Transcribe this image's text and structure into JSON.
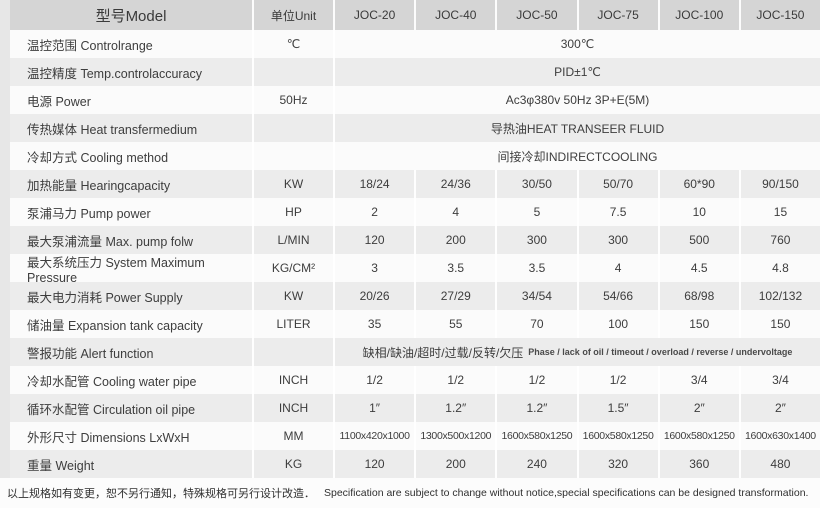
{
  "colors": {
    "header_bg": "#d5d5d5",
    "row_light": "#fbfbfb",
    "row_dark": "#ececec",
    "text": "#3d3d3d"
  },
  "table": {
    "header": {
      "model": "型号Model",
      "unit": "单位Unit",
      "models": [
        "JOC-20",
        "JOC-40",
        "JOC-50",
        "JOC-75",
        "JOC-100",
        "JOC-150"
      ]
    },
    "rows": [
      {
        "label": "温控范围 Controlrange",
        "unit": "℃",
        "span": "300℃"
      },
      {
        "label": "温控精度 Temp.controlaccuracy",
        "unit": "",
        "span": "PID±1℃"
      },
      {
        "label": "电源 Power",
        "unit": "50Hz",
        "span": "Ac3φ380v 50Hz 3P+E(5M)"
      },
      {
        "label": "传热媒体 Heat transfermedium",
        "unit": "",
        "span": "导热油HEAT TRANSEER FLUID"
      },
      {
        "label": "冷却方式 Cooling method",
        "unit": "",
        "span": "间接冷却INDIRECTCOOLING"
      },
      {
        "label": "加热能量 Hearingcapacity",
        "unit": "KW",
        "values": [
          "18/24",
          "24/36",
          "30/50",
          "50/70",
          "60*90",
          "90/150"
        ]
      },
      {
        "label": "泵浦马力 Pump power",
        "unit": "HP",
        "values": [
          "2",
          "4",
          "5",
          "7.5",
          "10",
          "15"
        ]
      },
      {
        "label": "最大泵浦流量 Max. pump folw",
        "unit": "L/MIN",
        "values": [
          "120",
          "200",
          "300",
          "300",
          "500",
          "760"
        ]
      },
      {
        "label": "最大系统压力 System Maximum Pressure",
        "unit": "KG/CM²",
        "values": [
          "3",
          "3.5",
          "3.5",
          "4",
          "4.5",
          "4.8"
        ]
      },
      {
        "label": "最大电力消耗 Power Supply",
        "unit": "KW",
        "values": [
          "20/26",
          "27/29",
          "34/54",
          "54/66",
          "68/98",
          "102/132"
        ]
      },
      {
        "label": "储油量 Expansion tank capacity",
        "unit": "LITER",
        "values": [
          "35",
          "55",
          "70",
          "100",
          "150",
          "150"
        ]
      },
      {
        "label": "警报功能 Alert function",
        "unit": "",
        "span_cn": "缺相/缺油/超时/过载/反转/欠压",
        "span_en": "Phase / lack of oil / timeout / overload / reverse / undervoltage"
      },
      {
        "label": "冷却水配管 Cooling water pipe",
        "unit": "INCH",
        "values": [
          "1/2",
          "1/2",
          "1/2",
          "1/2",
          "3/4",
          "3/4"
        ]
      },
      {
        "label": "循环水配管 Circulation oil pipe",
        "unit": "INCH",
        "values": [
          "1″",
          "1.2″",
          "1.2″",
          "1.5″",
          "2″",
          "2″"
        ]
      },
      {
        "label": "外形尺寸 Dimensions LxWxH",
        "unit": "MM",
        "values": [
          "1100x420x1000",
          "1300x500x1200",
          "1600x580x1250",
          "1600x580x1250",
          "1600x580x1250",
          "1600x630x1400"
        ]
      },
      {
        "label": "重量 Weight",
        "unit": "KG",
        "values": [
          "120",
          "200",
          "240",
          "320",
          "360",
          "480"
        ]
      }
    ]
  },
  "footer": {
    "cn": "以上规格如有变更，恕不另行通知，特殊规格可另行设计改造．",
    "en": "Specification are subject to change without notice,special specifications can be designed transformation."
  }
}
